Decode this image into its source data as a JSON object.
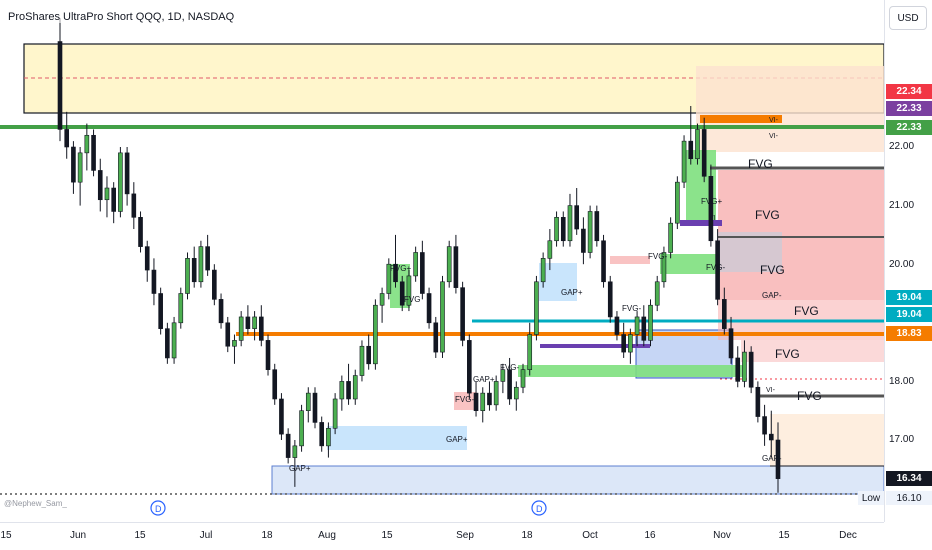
{
  "chart": {
    "title": "ProShares UltraPro Short QQQ, 1D, NASDAQ",
    "watermark": "@Nephew_Sam_",
    "currency": "USD",
    "low_label": "Low",
    "low_value": "16.10",
    "dividend_marker": "D"
  },
  "price_axis": {
    "ticks": [
      "22.00",
      "21.00",
      "20.00",
      "18.00",
      "17.00"
    ],
    "tags": [
      {
        "label": "22.34",
        "color": "#f23645"
      },
      {
        "label": "22.33",
        "color": "#7b3fa0"
      },
      {
        "label": "22.33",
        "color": "#43a047"
      },
      {
        "label": "19.04",
        "color": "#00acc1"
      },
      {
        "label": "19.04",
        "color": "#00acc1"
      },
      {
        "label": "18.83",
        "color": "#f57c00"
      },
      {
        "label": "16.34",
        "color": "#131722"
      }
    ]
  },
  "time_axis": {
    "ticks": [
      "15",
      "Jun",
      "15",
      "Jul",
      "18",
      "Aug",
      "15",
      "Sep",
      "18",
      "Oct",
      "16",
      "Nov",
      "15",
      "Dec"
    ]
  },
  "annotations": {
    "fvg": "FVG",
    "fvg_plus": "FVG+",
    "fvg_minus": "FVG-",
    "gap_plus": "GAP+",
    "gap_minus": "GAP-",
    "vi_minus": "VI-",
    "vi": "VI"
  },
  "colors": {
    "up": "#4caf50",
    "down": "#131722",
    "premium_zone": "#fff6cc",
    "fvg_bear": "#f8b4b4",
    "fvg_bull": "#7ee07e",
    "gap_zone": "#bbdefb",
    "orange_line": "#f57c00",
    "green_line": "#43a047",
    "teal_line": "#00acc1"
  },
  "chart_data": {
    "type": "candlestick",
    "title": "ProShares UltraPro Short QQQ, 1D, NASDAQ",
    "y_unit": "USD",
    "ylim": [
      15.9,
      23.3
    ],
    "x_range": [
      "May 15",
      "Dec"
    ],
    "levels": [
      {
        "label": "22.34",
        "value": 22.34
      },
      {
        "label": "22.33",
        "value": 22.33
      },
      {
        "label": "22.33",
        "value": 22.33
      },
      {
        "label": "19.04",
        "value": 19.04
      },
      {
        "label": "19.04",
        "value": 19.04
      },
      {
        "label": "18.83",
        "value": 18.83
      },
      {
        "label": "16.34",
        "value": 16.34
      }
    ],
    "low": 16.1,
    "candles": [
      [
        23.8,
        24.2,
        22.1,
        22.3
      ],
      [
        22.3,
        22.6,
        21.8,
        22.0
      ],
      [
        22.0,
        22.1,
        21.2,
        21.4
      ],
      [
        21.4,
        22.0,
        21.0,
        21.9
      ],
      [
        21.9,
        22.4,
        21.6,
        22.2
      ],
      [
        22.2,
        22.3,
        21.5,
        21.6
      ],
      [
        21.6,
        21.8,
        20.9,
        21.1
      ],
      [
        21.1,
        21.5,
        20.8,
        21.3
      ],
      [
        21.3,
        21.4,
        20.7,
        20.9
      ],
      [
        20.9,
        22.0,
        20.8,
        21.9
      ],
      [
        21.9,
        22.0,
        21.0,
        21.2
      ],
      [
        21.2,
        21.4,
        20.6,
        20.8
      ],
      [
        20.8,
        20.9,
        20.2,
        20.3
      ],
      [
        20.3,
        20.4,
        19.7,
        19.9
      ],
      [
        19.9,
        20.1,
        19.3,
        19.5
      ],
      [
        19.5,
        19.6,
        18.8,
        18.9
      ],
      [
        18.9,
        19.0,
        18.3,
        18.4
      ],
      [
        18.4,
        19.1,
        18.3,
        19.0
      ],
      [
        19.0,
        19.6,
        18.9,
        19.5
      ],
      [
        19.5,
        20.2,
        19.4,
        20.1
      ],
      [
        20.1,
        20.3,
        19.6,
        19.7
      ],
      [
        19.7,
        20.4,
        19.6,
        20.3
      ],
      [
        20.3,
        20.5,
        19.8,
        19.9
      ],
      [
        19.9,
        20.0,
        19.3,
        19.4
      ],
      [
        19.4,
        19.5,
        18.9,
        19.0
      ],
      [
        19.0,
        19.1,
        18.5,
        18.6
      ],
      [
        18.6,
        18.8,
        18.3,
        18.7
      ],
      [
        18.7,
        19.2,
        18.6,
        19.1
      ],
      [
        19.1,
        19.3,
        18.8,
        18.9
      ],
      [
        18.9,
        19.2,
        18.7,
        19.1
      ],
      [
        19.1,
        19.3,
        18.6,
        18.7
      ],
      [
        18.7,
        18.8,
        18.1,
        18.2
      ],
      [
        18.2,
        18.3,
        17.6,
        17.7
      ],
      [
        17.7,
        17.8,
        17.0,
        17.1
      ],
      [
        17.1,
        17.2,
        16.6,
        16.7
      ],
      [
        16.7,
        17.0,
        16.2,
        16.9
      ],
      [
        16.9,
        17.6,
        16.8,
        17.5
      ],
      [
        17.5,
        17.9,
        17.3,
        17.8
      ],
      [
        17.8,
        17.9,
        17.2,
        17.3
      ],
      [
        17.3,
        17.4,
        16.8,
        16.9
      ],
      [
        16.9,
        17.3,
        16.7,
        17.2
      ],
      [
        17.2,
        17.8,
        17.1,
        17.7
      ],
      [
        17.7,
        18.1,
        17.5,
        18.0
      ],
      [
        18.0,
        18.3,
        17.6,
        17.7
      ],
      [
        17.7,
        18.2,
        17.6,
        18.1
      ],
      [
        18.1,
        18.7,
        18.0,
        18.6
      ],
      [
        18.6,
        18.8,
        18.2,
        18.3
      ],
      [
        18.3,
        19.4,
        18.2,
        19.3
      ],
      [
        19.3,
        19.6,
        19.0,
        19.5
      ],
      [
        19.5,
        20.1,
        19.4,
        20.0
      ],
      [
        20.0,
        20.5,
        19.6,
        19.7
      ],
      [
        19.7,
        19.8,
        19.2,
        19.3
      ],
      [
        19.3,
        19.9,
        19.2,
        19.8
      ],
      [
        19.8,
        20.3,
        19.7,
        20.2
      ],
      [
        20.2,
        20.4,
        19.4,
        19.5
      ],
      [
        19.5,
        19.6,
        18.9,
        19.0
      ],
      [
        19.0,
        19.1,
        18.4,
        18.5
      ],
      [
        18.5,
        19.8,
        18.4,
        19.7
      ],
      [
        19.7,
        20.4,
        19.6,
        20.3
      ],
      [
        20.3,
        20.5,
        19.5,
        19.6
      ],
      [
        19.6,
        19.7,
        18.6,
        18.7
      ],
      [
        18.7,
        18.8,
        17.7,
        17.8
      ],
      [
        17.8,
        18.0,
        17.4,
        17.5
      ],
      [
        17.5,
        17.9,
        17.3,
        17.8
      ],
      [
        17.8,
        18.0,
        17.5,
        17.6
      ],
      [
        17.6,
        18.1,
        17.5,
        18.0
      ],
      [
        18.0,
        18.3,
        17.8,
        18.2
      ],
      [
        18.2,
        18.4,
        17.6,
        17.7
      ],
      [
        17.7,
        18.0,
        17.5,
        17.9
      ],
      [
        17.9,
        18.3,
        17.8,
        18.2
      ],
      [
        18.2,
        19.0,
        18.1,
        18.8
      ],
      [
        18.8,
        19.8,
        18.7,
        19.7
      ],
      [
        19.7,
        20.2,
        19.6,
        20.1
      ],
      [
        20.1,
        20.6,
        19.9,
        20.4
      ],
      [
        20.4,
        20.9,
        20.3,
        20.8
      ],
      [
        20.8,
        20.9,
        20.3,
        20.4
      ],
      [
        20.4,
        21.2,
        20.3,
        21.0
      ],
      [
        21.0,
        21.3,
        20.5,
        20.6
      ],
      [
        20.6,
        20.8,
        20.0,
        20.2
      ],
      [
        20.2,
        21.0,
        20.1,
        20.9
      ],
      [
        20.9,
        21.0,
        20.3,
        20.4
      ],
      [
        20.4,
        20.5,
        19.6,
        19.7
      ],
      [
        19.7,
        19.8,
        19.0,
        19.1
      ],
      [
        19.1,
        19.2,
        18.7,
        18.8
      ],
      [
        18.8,
        19.0,
        18.4,
        18.5
      ],
      [
        18.5,
        18.9,
        18.3,
        18.8
      ],
      [
        18.8,
        19.2,
        18.6,
        19.1
      ],
      [
        19.1,
        19.3,
        18.6,
        18.7
      ],
      [
        18.7,
        19.4,
        18.6,
        19.3
      ],
      [
        19.3,
        19.8,
        19.2,
        19.7
      ],
      [
        19.7,
        20.3,
        19.6,
        20.2
      ],
      [
        20.2,
        20.8,
        20.1,
        20.7
      ],
      [
        20.7,
        21.5,
        20.6,
        21.4
      ],
      [
        21.4,
        22.2,
        21.3,
        22.1
      ],
      [
        22.1,
        22.7,
        21.7,
        21.8
      ],
      [
        21.8,
        22.4,
        21.7,
        22.3
      ],
      [
        22.3,
        22.5,
        21.4,
        21.5
      ],
      [
        21.5,
        21.7,
        20.3,
        20.4
      ],
      [
        20.4,
        20.6,
        19.3,
        19.4
      ],
      [
        19.4,
        19.6,
        18.8,
        18.9
      ],
      [
        18.9,
        19.1,
        18.3,
        18.4
      ],
      [
        18.4,
        18.6,
        17.9,
        18.0
      ],
      [
        18.0,
        18.7,
        17.9,
        18.5
      ],
      [
        18.5,
        18.6,
        17.8,
        17.9
      ],
      [
        17.9,
        18.0,
        17.3,
        17.4
      ],
      [
        17.4,
        17.6,
        16.9,
        17.1
      ],
      [
        17.1,
        17.5,
        16.7,
        17.0
      ],
      [
        17.0,
        17.3,
        16.1,
        16.34
      ]
    ]
  }
}
